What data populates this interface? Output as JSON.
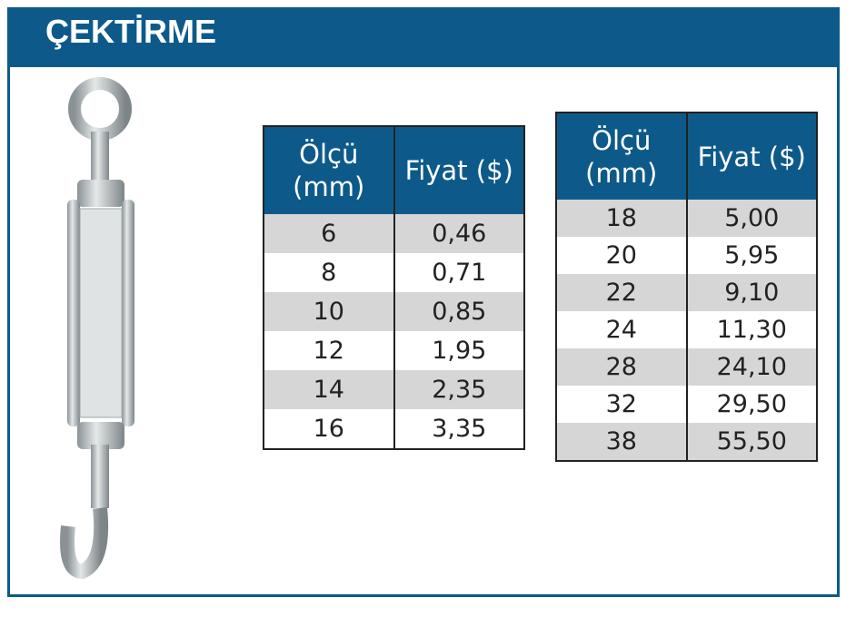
{
  "header": {
    "title": "ÇEKTİRME"
  },
  "tables": [
    {
      "columns": [
        "Ölçü (mm)",
        "Fiyat ($)"
      ],
      "rows": [
        [
          "6",
          "0,46"
        ],
        [
          "8",
          "0,71"
        ],
        [
          "10",
          "0,85"
        ],
        [
          "12",
          "1,95"
        ],
        [
          "14",
          "2,35"
        ],
        [
          "16",
          "3,35"
        ]
      ]
    },
    {
      "columns": [
        "Ölçü (mm)",
        "Fiyat ($)"
      ],
      "rows": [
        [
          "18",
          "5,00"
        ],
        [
          "20",
          "5,95"
        ],
        [
          "22",
          "9,10"
        ],
        [
          "24",
          "11,30"
        ],
        [
          "28",
          "24,10"
        ],
        [
          "32",
          "29,50"
        ],
        [
          "38",
          "55,50"
        ]
      ]
    }
  ]
}
